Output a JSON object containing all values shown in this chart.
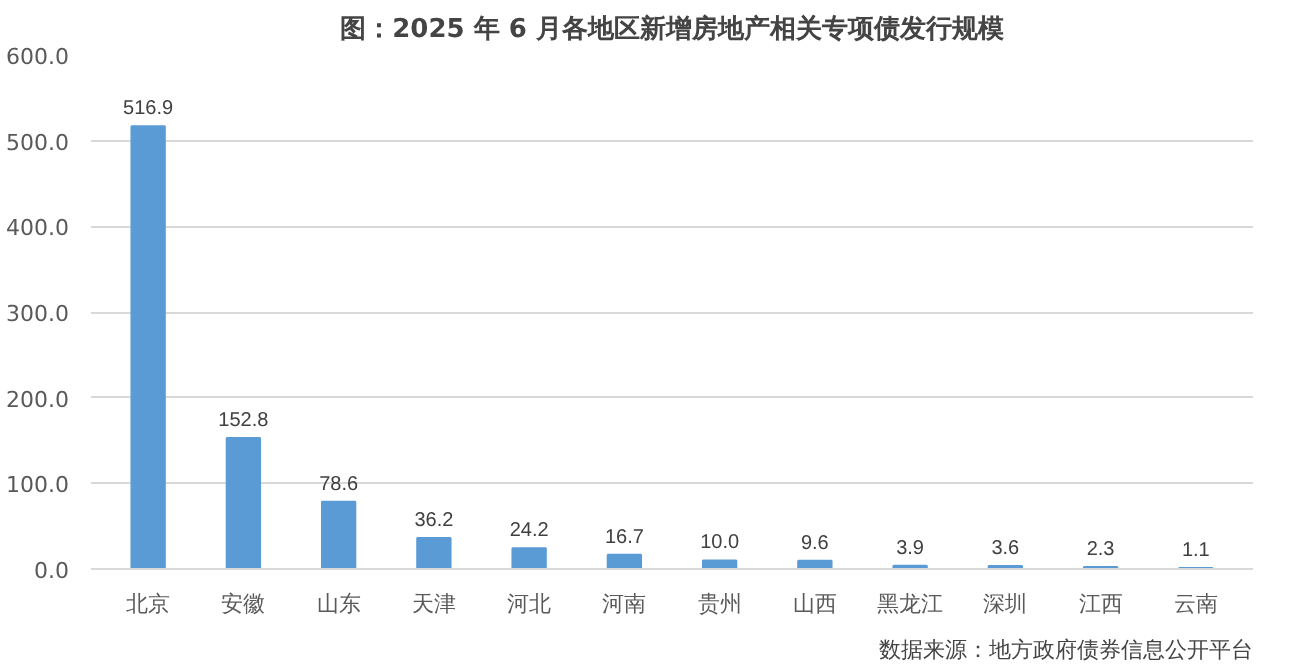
{
  "chart_data": {
    "type": "bar",
    "title": "图：2025 年 6 月各地区新增房地产相关专项债发行规模",
    "categories": [
      "北京",
      "安徽",
      "山东",
      "天津",
      "河北",
      "河南",
      "贵州",
      "山西",
      "黑龙江",
      "深圳",
      "江西",
      "云南"
    ],
    "values": [
      516.9,
      152.8,
      78.6,
      36.2,
      24.2,
      16.7,
      10.0,
      9.6,
      3.9,
      3.6,
      2.3,
      1.1
    ],
    "value_labels": [
      "516.9",
      "152.8",
      "78.6",
      "36.2",
      "24.2",
      "16.7",
      "10.0",
      "9.6",
      "3.9",
      "3.6",
      "2.3",
      "1.1"
    ],
    "color": "#5b9bd5",
    "ylim": [
      0,
      600
    ],
    "yticks": [
      {
        "value": 0,
        "label": "0.0"
      },
      {
        "value": 100,
        "label": "100.0"
      },
      {
        "value": 200,
        "label": "200.0"
      },
      {
        "value": 300,
        "label": "300.0"
      },
      {
        "value": 400,
        "label": "400.0"
      },
      {
        "value": 500,
        "label": "500.0"
      },
      {
        "value": 600,
        "label": "600.0"
      }
    ],
    "grid": "y",
    "annotations": [
      "数据来源：地方政府债券信息公开平台"
    ]
  }
}
